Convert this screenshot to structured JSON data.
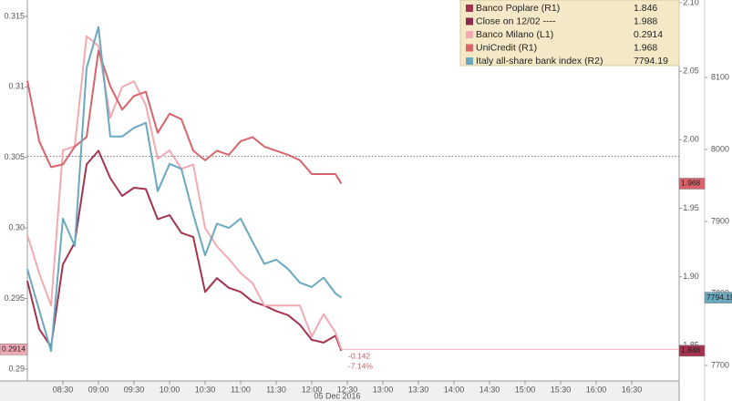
{
  "chart_data": {
    "type": "line",
    "x": [
      480,
      490,
      500,
      510,
      520,
      530,
      540,
      550,
      560,
      570,
      580,
      590,
      600,
      610,
      620,
      630,
      640,
      650,
      660,
      670,
      680,
      690,
      700,
      710,
      720,
      730,
      740,
      745
    ],
    "xlim": [
      480,
      1030
    ],
    "xticks": [
      {
        "value": 510,
        "label": "08:30"
      },
      {
        "value": 540,
        "label": "09:00"
      },
      {
        "value": 570,
        "label": "09:30"
      },
      {
        "value": 600,
        "label": "10:00"
      },
      {
        "value": 630,
        "label": "10:30"
      },
      {
        "value": 660,
        "label": "11:00"
      },
      {
        "value": 690,
        "label": "11:30"
      },
      {
        "value": 720,
        "label": "12:00"
      },
      {
        "value": 750,
        "label": "12:30"
      },
      {
        "value": 780,
        "label": "13:00"
      },
      {
        "value": 810,
        "label": "13:30"
      },
      {
        "value": 840,
        "label": "14:00"
      },
      {
        "value": 870,
        "label": "14:30"
      },
      {
        "value": 900,
        "label": "15:00"
      },
      {
        "value": 930,
        "label": "15:30"
      },
      {
        "value": 960,
        "label": "16:00"
      },
      {
        "value": 990,
        "label": "16:30"
      }
    ],
    "xlabel": "05 Dec 2016",
    "ylim": [
      0.28916,
      0.31616
    ],
    "yticks": [
      {
        "value": 0.315,
        "label": "0.315"
      },
      0.31,
      0.305,
      {
        "value": 0.3,
        "label": "0.30"
      },
      0.295,
      0.29
    ],
    "y2lim": [
      1.824,
      2.102
    ],
    "y2ticks": [
      {
        "value": 2.1,
        "label": "2.10"
      },
      2.05,
      {
        "value": 2.0,
        "label": "2.00"
      },
      1.95,
      {
        "value": 1.9,
        "label": "1.90"
      },
      1.85
    ],
    "y3lim": [
      7678.5,
      8207.6
    ],
    "y3ticks": [
      8100,
      8000,
      7900,
      7800,
      7700
    ],
    "series": [
      {
        "name": "Banco Poplare (R1)",
        "color": "#a3344f",
        "axis": "y2",
        "values": [
          1.897,
          1.862,
          1.849,
          1.909,
          1.925,
          1.982,
          1.992,
          1.972,
          1.959,
          1.965,
          1.964,
          1.942,
          1.945,
          1.932,
          1.929,
          1.889,
          1.899,
          1.892,
          1.889,
          1.882,
          1.879,
          1.875,
          1.872,
          1.865,
          1.854,
          1.852,
          1.857,
          1.846
        ]
      },
      {
        "name": "Close on 12/02 ----",
        "color": "#8b2a4f",
        "axis": "y2",
        "value": 1.988
      },
      {
        "name": "Banco Milano (L1)",
        "color": "#f2aab2",
        "values": [
          0.2995,
          0.2968,
          0.2945,
          0.3055,
          0.3058,
          0.3136,
          0.3129,
          0.3078,
          0.31,
          0.3104,
          0.3087,
          0.3049,
          0.3055,
          0.3042,
          0.3045,
          0.3,
          0.2987,
          0.2978,
          0.2968,
          0.2961,
          0.2945,
          0.2945,
          0.2945,
          0.2945,
          0.2923,
          0.2939,
          0.2926,
          0.2914
        ]
      },
      {
        "name": "UniCredit (R1)",
        "color": "#d8636a",
        "axis": "y2",
        "values": [
          2.043,
          1.999,
          1.98,
          1.982,
          1.995,
          2.002,
          2.065,
          2.039,
          2.022,
          2.032,
          2.035,
          2.005,
          2.019,
          2.015,
          1.992,
          1.985,
          1.992,
          1.989,
          1.999,
          2.002,
          1.995,
          1.992,
          1.989,
          1.985,
          1.975,
          1.975,
          1.975,
          1.968
        ]
      },
      {
        "name": "Italy all-share bank index (R2)",
        "color": "#6aa8bf",
        "axis": "y3",
        "values": [
          7834,
          7777,
          7720,
          7904,
          7866,
          8113,
          8170,
          8018,
          8018,
          8030,
          8037,
          7942,
          7980,
          7973,
          7910,
          7853,
          7897,
          7891,
          7904,
          7872,
          7841,
          7847,
          7834,
          7815,
          7809,
          7822,
          7800,
          7794.19
        ]
      }
    ],
    "annotations": [
      "-0.142",
      "-7.14%"
    ]
  }
}
